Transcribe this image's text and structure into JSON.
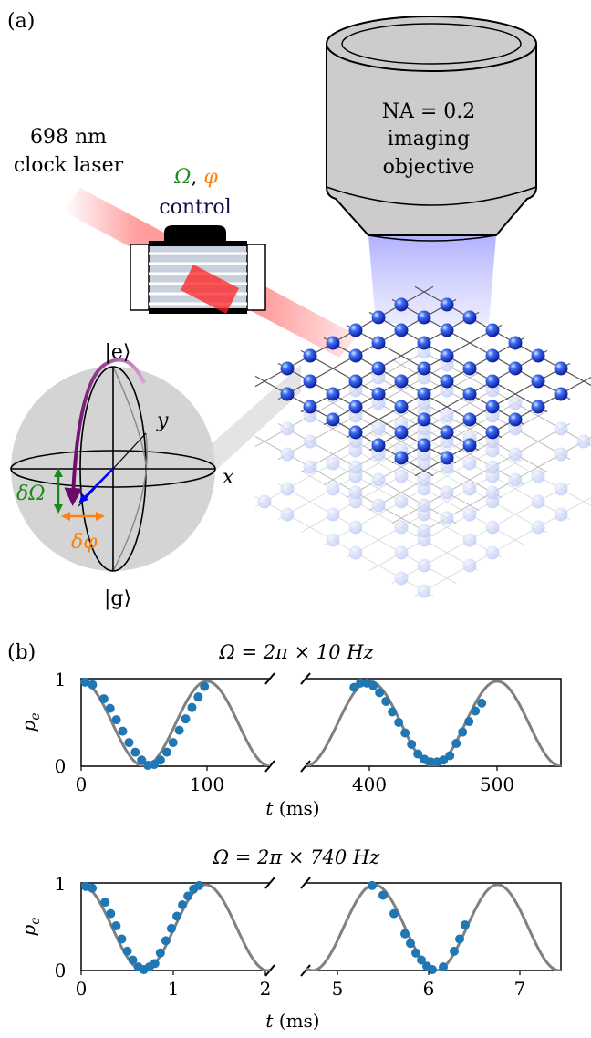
{
  "panel_a": {
    "label": "(a)",
    "laser_line1": "698 nm",
    "laser_line2": "clock laser",
    "control_omega": "Ω",
    "control_comma": ",",
    "control_phi": "φ",
    "control_word": "control",
    "objective_line1": "NA = 0.2",
    "objective_line2": "imaging",
    "objective_line3": "objective",
    "state_e": "|e⟩",
    "state_g": "|g⟩",
    "axis_x": "x",
    "axis_y": "y",
    "delta_omega": "δΩ",
    "delta_phi": "δφ",
    "colors": {
      "omega": "#1a8a1a",
      "phi": "#ff7f0e",
      "control_text": "#0c0c4a",
      "laser": "#ff2a2a",
      "objective": "#cccccc",
      "atom": "#2050e0",
      "arc": "#7a1a7a",
      "bloch_vector": "#0000ff"
    },
    "icons": [
      "laser-beam-icon",
      "aom-modulator-icon",
      "objective-lens-icon",
      "atom-lattice-icon",
      "bloch-sphere-icon"
    ]
  },
  "panel_b": {
    "label": "(b)",
    "tick_0": "0",
    "tick_1": "1",
    "plot1_title": "Ω = 2π × 10 Hz",
    "plot2_title": "Ω = 2π × 740 Hz",
    "ylabel": "p",
    "ylabel_sub": "e",
    "xlabel": "t (ms)",
    "plot1_xticks_left": [
      "0",
      "100"
    ],
    "plot1_xticks_right": [
      "400",
      "500"
    ],
    "plot2_xticks_left": [
      "0",
      "1",
      "2"
    ],
    "plot2_xticks_right": [
      "5",
      "6",
      "7"
    ]
  },
  "chart_data": [
    {
      "type": "scatter",
      "title": "Ω = 2π × 10 Hz",
      "xlabel": "t (ms)",
      "ylabel": "p_e",
      "ylim": [
        0,
        1
      ],
      "xlim_segments": [
        [
          0,
          150
        ],
        [
          350,
          550
        ]
      ],
      "fit_curve": {
        "type": "cosine",
        "amplitude": 0.485,
        "offset": 0.485,
        "period_ms": 100,
        "phase_ms": 0
      },
      "x": [
        3,
        9,
        18,
        23,
        28,
        33,
        38,
        43,
        48,
        53,
        58,
        63,
        68,
        73,
        78,
        83,
        88,
        93,
        98,
        388,
        393,
        398,
        403,
        408,
        413,
        418,
        423,
        428,
        433,
        438,
        443,
        448,
        453,
        458,
        463,
        468,
        473,
        478,
        483,
        488
      ],
      "y": [
        0.96,
        0.93,
        0.77,
        0.66,
        0.53,
        0.4,
        0.27,
        0.16,
        0.07,
        0.01,
        0.02,
        0.07,
        0.16,
        0.27,
        0.41,
        0.54,
        0.67,
        0.79,
        0.91,
        0.9,
        0.95,
        0.95,
        0.92,
        0.84,
        0.74,
        0.62,
        0.5,
        0.38,
        0.25,
        0.14,
        0.08,
        0.05,
        0.05,
        0.07,
        0.12,
        0.26,
        0.39,
        0.51,
        0.63,
        0.72
      ]
    },
    {
      "type": "scatter",
      "title": "Ω = 2π × 740 Hz",
      "xlabel": "t (ms)",
      "ylabel": "p_e",
      "ylim": [
        0,
        1
      ],
      "xlim_segments": [
        [
          0,
          2.05
        ],
        [
          4.65,
          7.45
        ]
      ],
      "fit_curve": {
        "type": "cosine",
        "amplitude": 0.49,
        "offset": 0.49,
        "period_ms": 1.351,
        "phase_ms": 0
      },
      "x": [
        0.05,
        0.12,
        0.26,
        0.32,
        0.38,
        0.44,
        0.5,
        0.56,
        0.62,
        0.68,
        0.74,
        0.8,
        0.86,
        0.92,
        0.98,
        1.04,
        1.1,
        1.16,
        1.22,
        1.28,
        5.38,
        5.5,
        5.62,
        5.74,
        5.8,
        5.86,
        5.92,
        5.98,
        6.04,
        6.16,
        6.28,
        6.34,
        6.4
      ],
      "y": [
        0.96,
        0.94,
        0.78,
        0.65,
        0.51,
        0.36,
        0.22,
        0.12,
        0.04,
        0.01,
        0.04,
        0.08,
        0.2,
        0.34,
        0.48,
        0.62,
        0.75,
        0.85,
        0.93,
        0.97,
        0.97,
        0.86,
        0.65,
        0.42,
        0.31,
        0.2,
        0.12,
        0.05,
        0.01,
        0.04,
        0.22,
        0.36,
        0.52
      ]
    }
  ]
}
